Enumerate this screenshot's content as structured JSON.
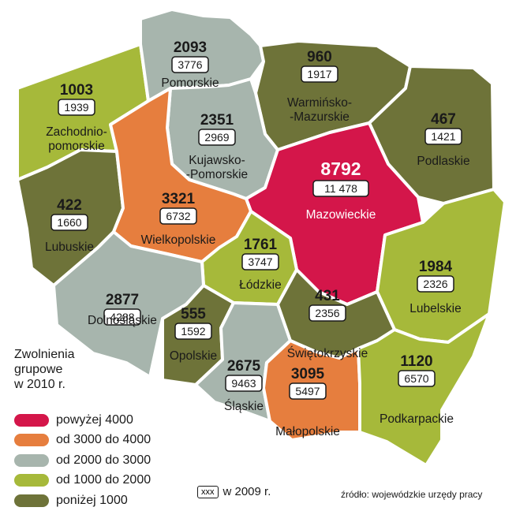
{
  "legend": {
    "title_lines": [
      "Zwolnienia",
      "grupowe",
      "w 2010 r."
    ],
    "categories": [
      {
        "label": "powyżej 4000",
        "color": "#d4164a"
      },
      {
        "label": "od 3000 do 4000",
        "color": "#e67e3e"
      },
      {
        "label": "od 2000 do 3000",
        "color": "#a7b5ad"
      },
      {
        "label": "od 1000 do 2000",
        "color": "#a6b93a"
      },
      {
        "label": "poniżej 1000",
        "color": "#6e7339"
      }
    ]
  },
  "key": {
    "box_text": "xxx",
    "label": "w 2009 r."
  },
  "source": "źródło: wojewódzkie urzędy pracy",
  "regions": [
    {
      "name_lines": [
        "Zachodnio-",
        "pomorskie"
      ],
      "layoffs_2010": "1003",
      "layoffs_2009": "1939",
      "category": 3
    },
    {
      "name_lines": [
        "Pomorskie"
      ],
      "layoffs_2010": "2093",
      "layoffs_2009": "3776",
      "category": 2
    },
    {
      "name_lines": [
        "Warmińsko-",
        "-Mazurskie"
      ],
      "layoffs_2010": "960",
      "layoffs_2009": "1917",
      "category": 4
    },
    {
      "name_lines": [
        "Podlaskie"
      ],
      "layoffs_2010": "467",
      "layoffs_2009": "1421",
      "category": 4
    },
    {
      "name_lines": [
        "Kujawsko-",
        "-Pomorskie"
      ],
      "layoffs_2010": "2351",
      "layoffs_2009": "2969",
      "category": 2
    },
    {
      "name_lines": [
        "Mazowieckie"
      ],
      "layoffs_2010": "8792",
      "layoffs_2009": "11 478",
      "category": 0
    },
    {
      "name_lines": [
        "Lubuskie"
      ],
      "layoffs_2010": "422",
      "layoffs_2009": "1660",
      "category": 4
    },
    {
      "name_lines": [
        "Wielkopolskie"
      ],
      "layoffs_2010": "3321",
      "layoffs_2009": "6732",
      "category": 1
    },
    {
      "name_lines": [
        "Łódzkie"
      ],
      "layoffs_2010": "1761",
      "layoffs_2009": "3747",
      "category": 3
    },
    {
      "name_lines": [
        "Lubelskie"
      ],
      "layoffs_2010": "1984",
      "layoffs_2009": "2326",
      "category": 3
    },
    {
      "name_lines": [
        "Dolnośląskie"
      ],
      "layoffs_2010": "2877",
      "layoffs_2009": "4288",
      "category": 2
    },
    {
      "name_lines": [
        "Opolskie"
      ],
      "layoffs_2010": "555",
      "layoffs_2009": "1592",
      "category": 4
    },
    {
      "name_lines": [
        "Śląskie"
      ],
      "layoffs_2010": "2675",
      "layoffs_2009": "9463",
      "category": 2
    },
    {
      "name_lines": [
        "Świętokrzyskie"
      ],
      "layoffs_2010": "431",
      "layoffs_2009": "2356",
      "category": 4
    },
    {
      "name_lines": [
        "Małopolskie"
      ],
      "layoffs_2010": "3095",
      "layoffs_2009": "5497",
      "category": 1
    },
    {
      "name_lines": [
        "Podkarpackie"
      ],
      "layoffs_2010": "1120",
      "layoffs_2009": "6570",
      "category": 3
    }
  ]
}
